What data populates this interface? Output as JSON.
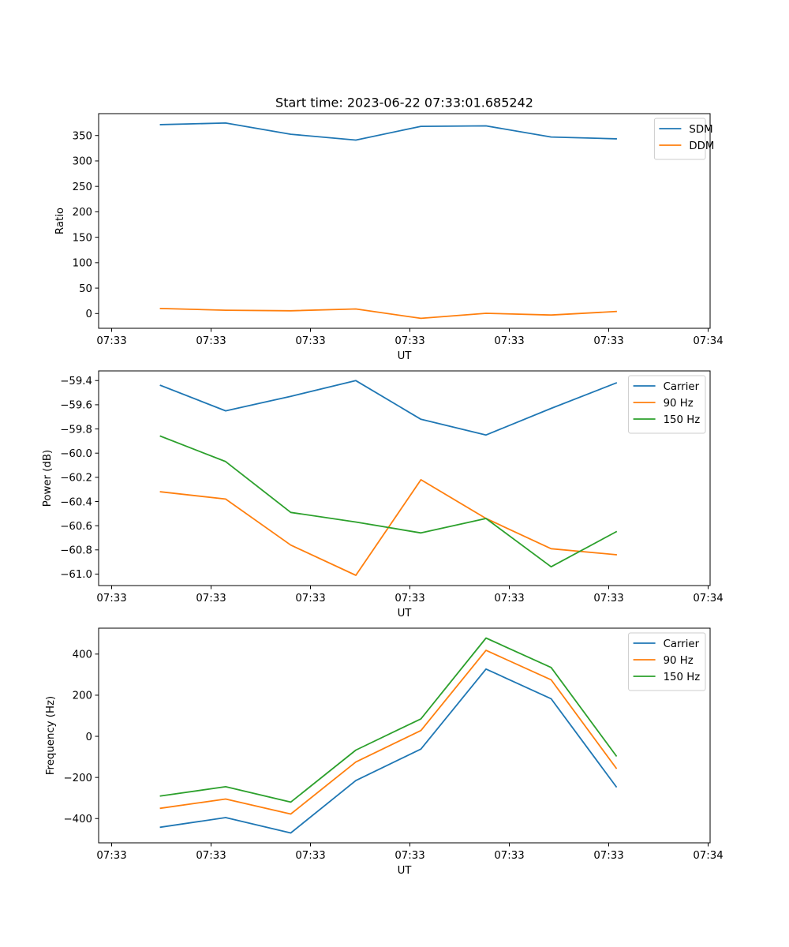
{
  "figure": {
    "title": "Start time: 2023-06-22 07:33:01.685242"
  },
  "chart_data": [
    {
      "type": "line",
      "xlabel": "UT",
      "ylabel": "Ratio",
      "x_tick_labels": [
        "07:33",
        "07:33",
        "07:33",
        "07:33",
        "07:33",
        "07:33",
        "07:34"
      ],
      "y_ticks": [
        0,
        50,
        100,
        150,
        200,
        250,
        300,
        350
      ],
      "ylim": [
        -29,
        393
      ],
      "legend": "top-right",
      "grid": false,
      "series": [
        {
          "name": "SDM",
          "color": "#1f77b4",
          "values": [
            371.5,
            374.5,
            352.5,
            341,
            368,
            369,
            347,
            343.5
          ]
        },
        {
          "name": "DDM",
          "color": "#ff7f0e",
          "values": [
            10,
            6.5,
            5.5,
            9,
            -9.5,
            0.5,
            -3,
            4
          ]
        }
      ]
    },
    {
      "type": "line",
      "xlabel": "UT",
      "ylabel": "Power (dB)",
      "x_tick_labels": [
        "07:33",
        "07:33",
        "07:33",
        "07:33",
        "07:33",
        "07:33",
        "07:34"
      ],
      "y_ticks": [
        -61.0,
        -60.8,
        -60.6,
        -60.4,
        -60.2,
        -60.0,
        -59.8,
        -59.6,
        -59.4
      ],
      "ylim": [
        -61.095,
        -59.32
      ],
      "legend": "top-right",
      "grid": false,
      "series": [
        {
          "name": "Carrier",
          "color": "#1f77b4",
          "values": [
            -59.44,
            -59.65,
            -59.53,
            -59.4,
            -59.72,
            -59.85,
            -59.63,
            -59.42
          ]
        },
        {
          "name": "90 Hz",
          "color": "#ff7f0e",
          "values": [
            -60.32,
            -60.38,
            -60.76,
            -61.01,
            -60.22,
            -60.54,
            -60.79,
            -60.84
          ]
        },
        {
          "name": "150 Hz",
          "color": "#2ca02c",
          "values": [
            -59.86,
            -60.07,
            -60.49,
            -60.57,
            -60.66,
            -60.54,
            -60.94,
            -60.65
          ]
        }
      ]
    },
    {
      "type": "line",
      "xlabel": "UT",
      "ylabel": "Frequency (Hz)",
      "x_tick_labels": [
        "07:33",
        "07:33",
        "07:33",
        "07:33",
        "07:33",
        "07:33",
        "07:34"
      ],
      "y_ticks": [
        -400,
        -200,
        0,
        200,
        400
      ],
      "ylim": [
        -518,
        526
      ],
      "legend": "top-right",
      "grid": false,
      "series": [
        {
          "name": "Carrier",
          "color": "#1f77b4",
          "values": [
            -442,
            -395,
            -470,
            -215,
            -62,
            327,
            183,
            -245
          ]
        },
        {
          "name": "90 Hz",
          "color": "#ff7f0e",
          "values": [
            -350,
            -305,
            -378,
            -125,
            28,
            418,
            275,
            -155
          ]
        },
        {
          "name": "150 Hz",
          "color": "#2ca02c",
          "values": [
            -290,
            -245,
            -320,
            -67,
            85,
            478,
            335,
            -95
          ]
        }
      ]
    }
  ]
}
